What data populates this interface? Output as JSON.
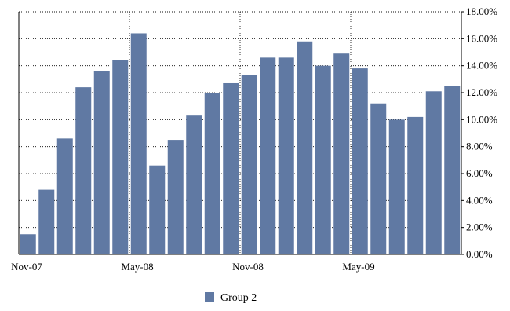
{
  "chart_data": {
    "type": "bar",
    "categories": [
      "Nov-07",
      "Dec-07",
      "Jan-08",
      "Feb-08",
      "Mar-08",
      "Apr-08",
      "May-08",
      "Jun-08",
      "Jul-08",
      "Aug-08",
      "Sep-08",
      "Oct-08",
      "Nov-08",
      "Dec-08",
      "Jan-09",
      "Feb-09",
      "Mar-09",
      "Apr-09",
      "May-09",
      "Jun-09",
      "Jul-09",
      "Aug-09",
      "Sep-09",
      "Oct-09"
    ],
    "x_tick_labels": [
      {
        "index": 0,
        "label": "Nov-07"
      },
      {
        "index": 6,
        "label": "May-08"
      },
      {
        "index": 12,
        "label": "Nov-08"
      },
      {
        "index": 18,
        "label": "May-09"
      }
    ],
    "series": [
      {
        "name": "Group 2",
        "color": "#6079a3",
        "values": [
          1.5,
          4.8,
          8.6,
          12.4,
          13.6,
          14.4,
          16.4,
          6.6,
          8.5,
          10.3,
          12.0,
          12.7,
          13.3,
          14.6,
          14.6,
          15.8,
          14.0,
          14.9,
          13.8,
          11.2,
          10.0,
          10.2,
          12.1,
          12.5
        ]
      }
    ],
    "y_ticks": [
      "0.00%",
      "2.00%",
      "4.00%",
      "6.00%",
      "8.00%",
      "10.00%",
      "12.00%",
      "14.00%",
      "16.00%",
      "18.00%"
    ],
    "ylim": [
      0,
      18
    ],
    "y_axis_side": "right",
    "grid": "dotted",
    "legend": {
      "position": "bottom-center",
      "label": "Group 2"
    },
    "title": "",
    "xlabel": "",
    "ylabel": ""
  }
}
